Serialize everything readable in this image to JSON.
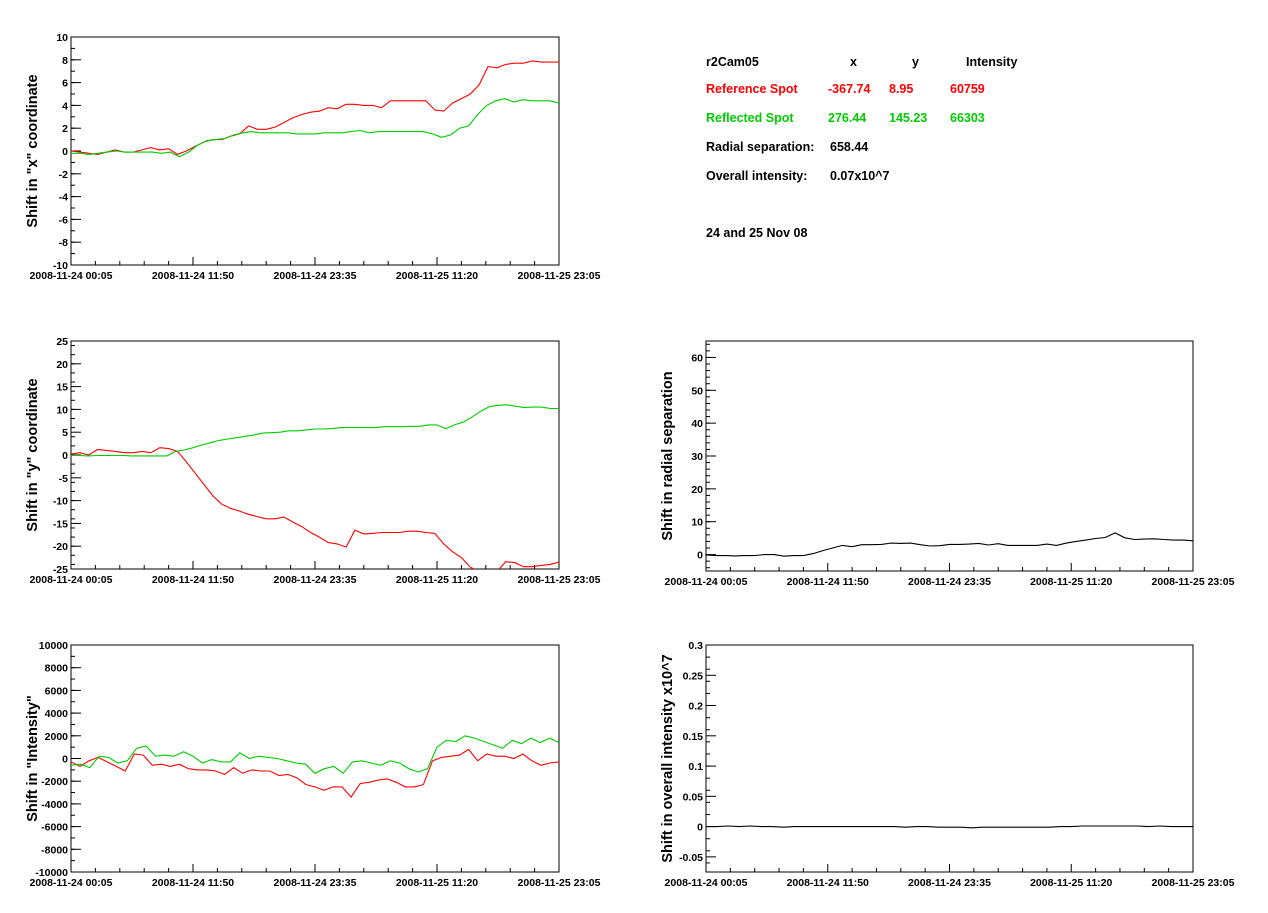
{
  "info": {
    "camera": "r2Cam05",
    "col_x": "x",
    "col_y": "y",
    "col_intensity": "Intensity",
    "reference": {
      "label": "Reference Spot",
      "x": "-367.74",
      "y": "8.95",
      "intensity": "60759",
      "color": "#ff0000"
    },
    "reflected": {
      "label": "Reflected Spot",
      "x": "276.44",
      "y": "145.23",
      "intensity": "66303",
      "color": "#00cc00"
    },
    "radial_label": "Radial separation:",
    "radial_value": "658.44",
    "overall_label": "Overall intensity:",
    "overall_value": "0.07x10^7",
    "dates": "24 and 25 Nov 08"
  },
  "chart_data": [
    {
      "id": "x-shift",
      "type": "line",
      "ylabel": "Shift in \"x\" coordinate",
      "ylim": [
        -10,
        10
      ],
      "yticks": [
        -10,
        -8,
        -6,
        -4,
        -2,
        0,
        2,
        4,
        6,
        8,
        10
      ],
      "xticks": [
        "2008-11-24 00:05",
        "2008-11-24 11:50",
        "2008-11-24 23:35",
        "2008-11-25 11:20",
        "2008-11-25 23:05"
      ],
      "series": [
        {
          "color": "#ff0000",
          "values": [
            0,
            -0.1,
            -0.2,
            -0.3,
            -0.1,
            0.1,
            -0.1,
            -0.1,
            0.1,
            0.3,
            0.1,
            0.2,
            -0.3,
            0,
            0.4,
            0.8,
            1,
            1,
            1.3,
            1.5,
            2.2,
            1.9,
            1.9,
            2.1,
            2.5,
            2.9,
            3.2,
            3.4,
            3.5,
            3.8,
            3.7,
            4.1,
            4.1,
            4,
            4,
            3.8,
            4.4,
            4.4,
            4.4,
            4.4,
            4.4,
            3.6,
            3.5,
            4.2,
            4.6,
            5.0,
            5.8,
            7.4,
            7.3,
            7.6,
            7.7,
            7.7,
            7.9,
            7.8,
            7.8,
            7.8
          ]
        },
        {
          "color": "#00cc00",
          "values": [
            -0.2,
            -0.2,
            -0.3,
            -0.2,
            -0.1,
            0,
            -0.1,
            -0.1,
            -0.1,
            -0.1,
            -0.2,
            -0.1,
            -0.5,
            -0.1,
            0.5,
            0.9,
            1.0,
            1.1,
            1.4,
            1.6,
            1.7,
            1.6,
            1.6,
            1.6,
            1.6,
            1.5,
            1.5,
            1.5,
            1.6,
            1.6,
            1.6,
            1.7,
            1.8,
            1.6,
            1.7,
            1.7,
            1.7,
            1.7,
            1.7,
            1.7,
            1.5,
            1.2,
            1.4,
            2.0,
            2.2,
            3.2,
            4.0,
            4.4,
            4.6,
            4.3,
            4.5,
            4.4,
            4.4,
            4.4,
            4.2
          ]
        }
      ]
    },
    {
      "id": "y-shift",
      "type": "line",
      "ylabel": "Shift in \"y\" coordinate",
      "ylim": [
        -25,
        25
      ],
      "yticks": [
        -25,
        -20,
        -15,
        -10,
        -5,
        0,
        5,
        10,
        15,
        20,
        25
      ],
      "xticks": [
        "2008-11-24 00:05",
        "2008-11-24 11:50",
        "2008-11-24 23:35",
        "2008-11-25 11:20",
        "2008-11-25 23:05"
      ],
      "series": [
        {
          "color": "#ff0000",
          "values": [
            0.2,
            0.5,
            0,
            1.2,
            1,
            0.8,
            0.5,
            0.5,
            0.8,
            0.5,
            1.6,
            1.4,
            0.8,
            -1.5,
            -4,
            -6.5,
            -9,
            -10.8,
            -11.7,
            -12.3,
            -13,
            -13.5,
            -14,
            -14,
            -13.6,
            -14.7,
            -15.7,
            -17,
            -18,
            -19.2,
            -19.5,
            -20.2,
            -16.5,
            -17.3,
            -17.2,
            -17,
            -17,
            -17,
            -16.7,
            -16.7,
            -17,
            -17.2,
            -19.5,
            -21.2,
            -22.5,
            -24.6,
            -25.5,
            -26,
            -25.5,
            -23.4,
            -23.6,
            -24.5,
            -24.5,
            -24.2,
            -24,
            -23.5
          ]
        },
        {
          "color": "#00cc00",
          "values": [
            -0.1,
            -0.1,
            -0.2,
            -0.1,
            -0.1,
            -0.1,
            -0.1,
            -0.2,
            -0.2,
            -0.2,
            -0.2,
            -0.2,
            0.8,
            1.1,
            1.6,
            2.2,
            2.7,
            3.2,
            3.5,
            3.8,
            4.1,
            4.4,
            4.8,
            4.9,
            5,
            5.3,
            5.3,
            5.5,
            5.7,
            5.7,
            5.8,
            6,
            6,
            6,
            6,
            6,
            6.2,
            6.2,
            6.2,
            6.3,
            6.3,
            6.6,
            6.6,
            5.8,
            6.6,
            7.2,
            8.3,
            9.6,
            10.6,
            10.9,
            11,
            10.7,
            10.4,
            10.5,
            10.5,
            10.2,
            10.2
          ]
        }
      ]
    },
    {
      "id": "radial-shift",
      "type": "line",
      "ylabel": "Shift in radial separation",
      "ylim": [
        -5,
        65
      ],
      "yticks": [
        0,
        10,
        20,
        30,
        40,
        50,
        60
      ],
      "xticks": [
        "2008-11-24 00:05",
        "2008-11-24 11:50",
        "2008-11-24 23:35",
        "2008-11-25 11:20",
        "2008-11-25 23:05"
      ],
      "series": [
        {
          "color": "#000000",
          "values": [
            -0.1,
            -0.3,
            -0.3,
            -0.4,
            -0.3,
            -0.3,
            0,
            0,
            -0.5,
            -0.3,
            -0.3,
            0.3,
            1.2,
            2,
            2.8,
            2.4,
            3,
            3,
            3.1,
            3.5,
            3.4,
            3.5,
            3,
            2.6,
            2.7,
            3.1,
            3.1,
            3.2,
            3.4,
            2.9,
            3.3,
            2.8,
            2.8,
            2.8,
            2.8,
            3.2,
            2.8,
            3.5,
            4,
            4.4,
            4.9,
            5.2,
            6.6,
            5.1,
            4.6,
            4.7,
            4.8,
            4.6,
            4.4,
            4.4,
            4.2
          ]
        }
      ]
    },
    {
      "id": "intensity-shift",
      "type": "line",
      "ylabel": "Shift in \"Intensity\"",
      "ylim": [
        -10000,
        10000
      ],
      "yticks": [
        -10000,
        -8000,
        -6000,
        -4000,
        -2000,
        0,
        2000,
        4000,
        6000,
        8000,
        10000
      ],
      "xticks": [
        "2008-11-24 00:05",
        "2008-11-24 11:50",
        "2008-11-24 23:35",
        "2008-11-25 11:20",
        "2008-11-25 23:05"
      ],
      "series": [
        {
          "color": "#ff0000",
          "values": [
            -300,
            -700,
            -200,
            100,
            -300,
            -700,
            -1100,
            400,
            300,
            -600,
            -500,
            -700,
            -500,
            -900,
            -1000,
            -1000,
            -1100,
            -1400,
            -800,
            -1300,
            -1000,
            -1100,
            -1100,
            -1500,
            -1400,
            -1700,
            -2300,
            -2500,
            -2800,
            -2500,
            -2500,
            -3400,
            -2200,
            -2100,
            -1900,
            -1800,
            -2100,
            -2500,
            -2500,
            -2300,
            -200,
            100,
            200,
            300,
            800,
            -200,
            400,
            200,
            200,
            0,
            400,
            -200,
            -600,
            -400,
            -300
          ]
        },
        {
          "color": "#00cc00",
          "values": [
            -600,
            -500,
            -800,
            200,
            100,
            -400,
            -200,
            900,
            1100,
            200,
            300,
            200,
            600,
            200,
            -400,
            -100,
            -300,
            -300,
            500,
            0,
            200,
            100,
            0,
            -200,
            -400,
            -500,
            -1300,
            -900,
            -700,
            -1300,
            -300,
            -200,
            -400,
            -600,
            -200,
            -400,
            -900,
            -1200,
            -900,
            1000,
            1600,
            1500,
            2000,
            1800,
            1500,
            1200,
            900,
            1600,
            1300,
            1800,
            1400,
            1800,
            1400
          ]
        }
      ]
    },
    {
      "id": "overall-intensity-shift",
      "type": "line",
      "ylabel": "Shift in overall intensity x10^7",
      "ylim": [
        -0.075,
        0.3
      ],
      "yticks": [
        -0.05,
        0,
        0.05,
        0.1,
        0.15,
        0.2,
        0.25,
        0.3
      ],
      "xticks": [
        "2008-11-24 00:05",
        "2008-11-24 11:50",
        "2008-11-24 23:35",
        "2008-11-25 11:20",
        "2008-11-25 23:05"
      ],
      "series": [
        {
          "color": "#000000",
          "values": [
            0,
            0,
            0.001,
            0,
            0.001,
            0,
            0,
            -0.001,
            0,
            0,
            0,
            0,
            0,
            0,
            0,
            0,
            0,
            0,
            -0.001,
            0,
            0,
            -0.001,
            -0.001,
            -0.001,
            -0.002,
            -0.001,
            -0.001,
            -0.001,
            -0.001,
            -0.001,
            -0.001,
            -0.001,
            0,
            0,
            0.001,
            0.001,
            0.001,
            0.001,
            0.001,
            0.001,
            0,
            0.001,
            0,
            0,
            0
          ]
        }
      ]
    }
  ]
}
